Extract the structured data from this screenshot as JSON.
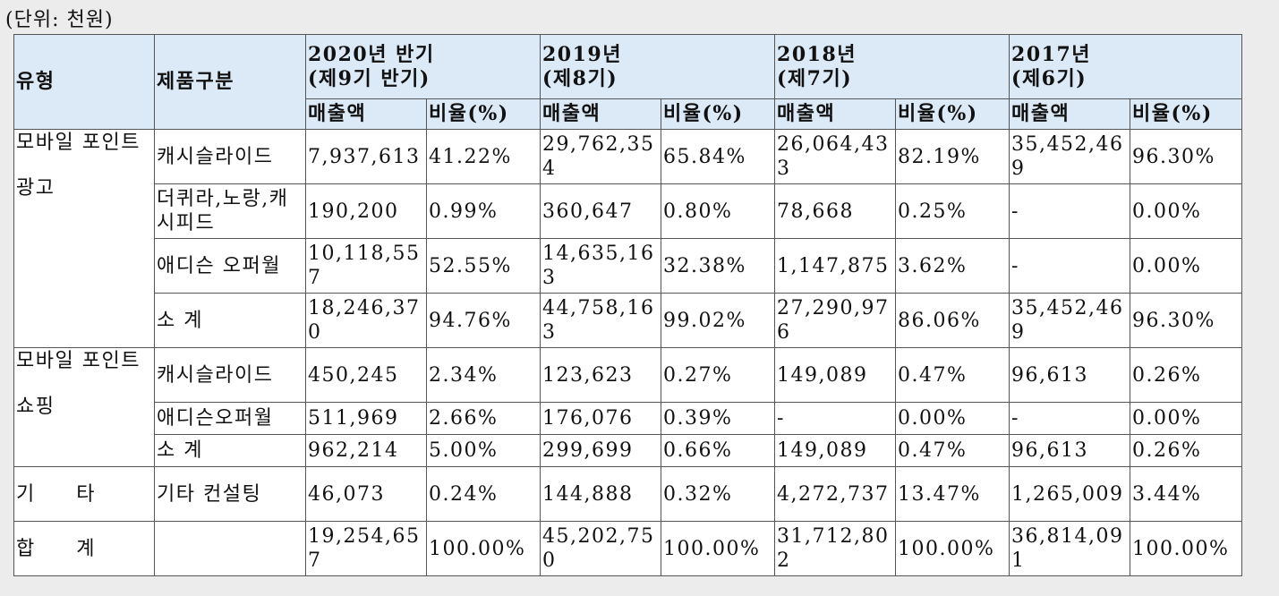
{
  "unit_note": "(단위: 천원)",
  "header": {
    "type": "유형",
    "product": "제품구분",
    "periods": [
      {
        "line1": "2020년 반기",
        "line2": "(제9기 반기)"
      },
      {
        "line1": "2019년",
        "line2": "(제8기)"
      },
      {
        "line1": "2018년",
        "line2": "(제7기)"
      },
      {
        "line1": "2017년",
        "line2": "(제6기)"
      }
    ],
    "sales": "매출액",
    "ratio": "비율(%)"
  },
  "groups": [
    {
      "type_lines": [
        "모바일 포인트",
        "광고"
      ],
      "rows": [
        {
          "product": "캐시슬라이드",
          "values": [
            "7,937,613",
            "41.22%",
            "29,762,354",
            "65.84%",
            "26,064,433",
            "82.19%",
            "35,452,469",
            "96.30%"
          ]
        },
        {
          "product": "더퀴라,노랑,캐시피드",
          "values": [
            "190,200",
            "0.99%",
            "360,647",
            "0.80%",
            "78,668",
            "0.25%",
            "-",
            "0.00%"
          ]
        },
        {
          "product": "애디슨 오퍼월",
          "values": [
            "10,118,557",
            "52.55%",
            "14,635,163",
            "32.38%",
            "1,147,875",
            "3.62%",
            "-",
            "0.00%"
          ]
        },
        {
          "product": "소 계",
          "values": [
            "18,246,370",
            "94.76%",
            "44,758,163",
            "99.02%",
            "27,290,976",
            "86.06%",
            "35,452,469",
            "96.30%"
          ]
        }
      ]
    },
    {
      "type_lines": [
        "모바일 포인트",
        "쇼핑"
      ],
      "rows": [
        {
          "product": "캐시슬라이드",
          "values": [
            "450,245",
            "2.34%",
            "123,623",
            "0.27%",
            "149,089",
            "0.47%",
            "96,613",
            "0.26%"
          ]
        },
        {
          "product": "애디슨오퍼월",
          "values": [
            "511,969",
            "2.66%",
            "176,076",
            "0.39%",
            "-",
            "0.00%",
            "-",
            "0.00%"
          ]
        },
        {
          "product": "소 계",
          "values": [
            "962,214",
            "5.00%",
            "299,699",
            "0.66%",
            "149,089",
            "0.47%",
            "96,613",
            "0.26%"
          ]
        }
      ]
    },
    {
      "type_lines": [
        "기 타"
      ],
      "rows": [
        {
          "product": "기타 컨설팅",
          "values": [
            "46,073",
            "0.24%",
            "144,888",
            "0.32%",
            "4,272,737",
            "13.47%",
            "1,265,009",
            "3.44%"
          ]
        }
      ]
    }
  ],
  "total": {
    "label": "합 계",
    "values": [
      "19,254,657",
      "100.00%",
      "45,202,750",
      "100.00%",
      "31,712,802",
      "100.00%",
      "36,814,091",
      "100.00%"
    ]
  }
}
